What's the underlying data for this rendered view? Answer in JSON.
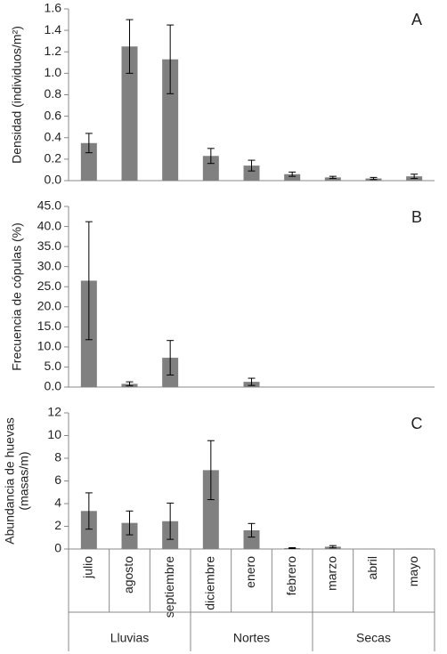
{
  "chart_data": [
    {
      "type": "bar",
      "title": "A",
      "ylabel": [
        "Densidad (individuos/m²)"
      ],
      "values": [
        0.35,
        1.25,
        1.13,
        0.23,
        0.14,
        0.06,
        0.03,
        0.02,
        0.04
      ],
      "errors": [
        0.09,
        0.25,
        0.32,
        0.07,
        0.05,
        0.02,
        0.01,
        0.01,
        0.02
      ],
      "color": "#808080",
      "ylim": [
        0,
        1.6
      ],
      "yticks": [
        {
          "value": 0,
          "label": "0.0"
        },
        0.2,
        0.4,
        0.6,
        0.8,
        {
          "value": 1,
          "label": "1.0"
        },
        1.2,
        1.4,
        1.6
      ]
    },
    {
      "type": "bar",
      "title": "B",
      "ylabel": [
        "Frecuencia de cópulas (%)"
      ],
      "values": [
        26.5,
        0.8,
        7.3,
        0,
        1.3,
        0,
        0,
        0,
        0
      ],
      "errors": [
        14.7,
        0.5,
        4.3,
        null,
        0.9,
        null,
        null,
        null,
        null
      ],
      "color": "#808080",
      "ylim": [
        0,
        45
      ],
      "yticks": [
        {
          "value": 0,
          "label": "0.0"
        },
        {
          "value": 5,
          "label": "5.0"
        },
        {
          "value": 10,
          "label": "10.0"
        },
        {
          "value": 15,
          "label": "15.0"
        },
        {
          "value": 20,
          "label": "20.0"
        },
        {
          "value": 25,
          "label": "25.0"
        },
        {
          "value": 30,
          "label": "30.0"
        },
        {
          "value": 35,
          "label": "35.0"
        },
        {
          "value": 40,
          "label": "40.0"
        },
        {
          "value": 45,
          "label": "45.0"
        }
      ]
    },
    {
      "type": "bar",
      "title": "C",
      "ylabel": [
        "Abundancia de huevas",
        "(masas/m)"
      ],
      "categories": [
        "julio",
        "agosto",
        "septiembre",
        "diciembre",
        "enero",
        "febrero",
        "marzo",
        "abril",
        "mayo"
      ],
      "groups": [
        "Lluvias",
        "Nortes",
        "Secas"
      ],
      "values": [
        3.35,
        2.3,
        2.45,
        6.95,
        1.65,
        0.08,
        0.2,
        0.02,
        0.02
      ],
      "errors": [
        1.6,
        1.05,
        1.6,
        2.6,
        0.6,
        0.04,
        0.1,
        null,
        null
      ],
      "color": "#808080",
      "ylim": [
        0,
        12
      ],
      "yticks": [
        0,
        2,
        4,
        6,
        8,
        10,
        12
      ]
    }
  ]
}
